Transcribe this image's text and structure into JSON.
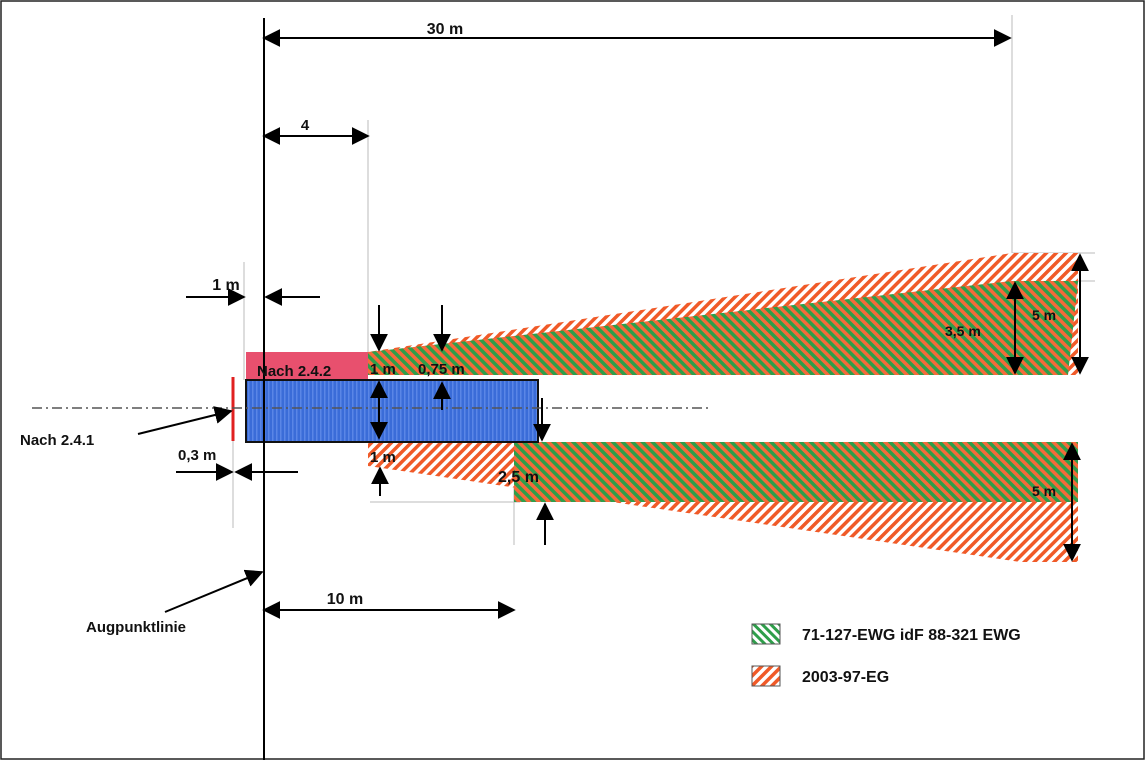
{
  "labels": {
    "dim_30m": "30 m",
    "dim_4": "4",
    "dim_1m_top": "1 m",
    "nach_242": "Nach 2.4.2",
    "dim_1m_mid": "1 m",
    "dim_075m": "0,75 m",
    "dim_35m": "3,5 m",
    "dim_5m_top": "5 m",
    "nach_241": "Nach 2.4.1",
    "dim_03m": "0,3 m",
    "dim_1m_low": "1 m",
    "dim_25m": "2,5 m",
    "dim_5m_bottom": "5 m",
    "augpunktlinie": "Augpunktlinie",
    "dim_10m": "10 m"
  },
  "legend": [
    {
      "label": "71-127-EWG idF 88-321 EWG",
      "color": "#2e9e4a",
      "icon": "green-hatch"
    },
    {
      "label": "2003-97-EG",
      "color": "#f05a28",
      "icon": "orange-hatch"
    }
  ],
  "colors": {
    "green": "#2e9e4a",
    "orange": "#f05a28",
    "pink": "#e8506e",
    "blue": "#3a6cd8",
    "red": "#e02020"
  }
}
